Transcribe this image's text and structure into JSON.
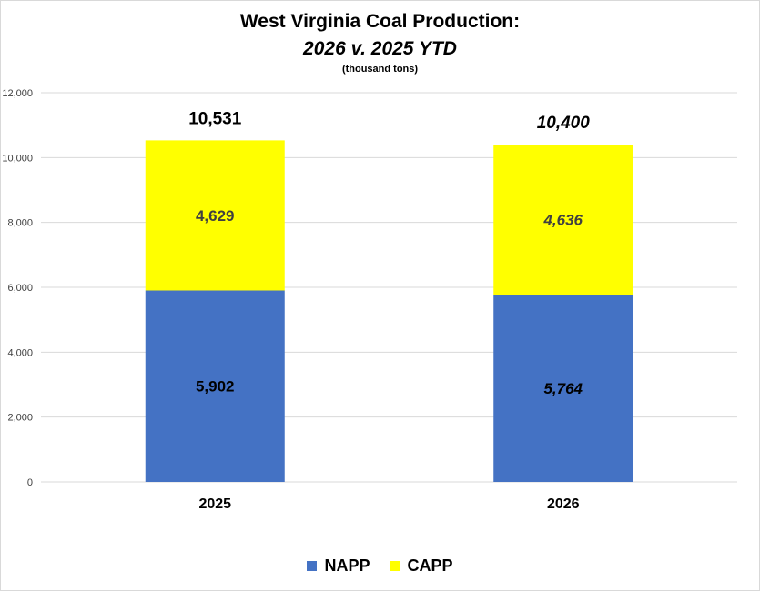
{
  "chart_data": {
    "type": "bar",
    "stacked": true,
    "title": "West Virginia Coal Production:",
    "subtitle": "2026 v. 2025 YTD",
    "unit_note": "(thousand tons)",
    "categories": [
      "2025",
      "2026"
    ],
    "series": [
      {
        "name": "NAPP",
        "color": "#4472c4",
        "values": [
          5902,
          5764
        ]
      },
      {
        "name": "CAPP",
        "color": "#ffff00",
        "values": [
          4629,
          4636
        ]
      }
    ],
    "totals": [
      10531,
      10400
    ],
    "value_labels": {
      "NAPP": [
        "5,902",
        "5,764"
      ],
      "CAPP": [
        "4,629",
        "4,636"
      ],
      "total": [
        "10,531",
        "10,400"
      ]
    },
    "italic_labels_category": "2026",
    "ylim": [
      0,
      12000
    ],
    "yticks": [
      0,
      2000,
      4000,
      6000,
      8000,
      10000,
      12000
    ],
    "ytick_labels": [
      "0",
      "2,000",
      "4,000",
      "6,000",
      "8,000",
      "10,000",
      "12,000"
    ],
    "grid": true,
    "legend": "bottom-center",
    "xlabel": "",
    "ylabel": ""
  }
}
